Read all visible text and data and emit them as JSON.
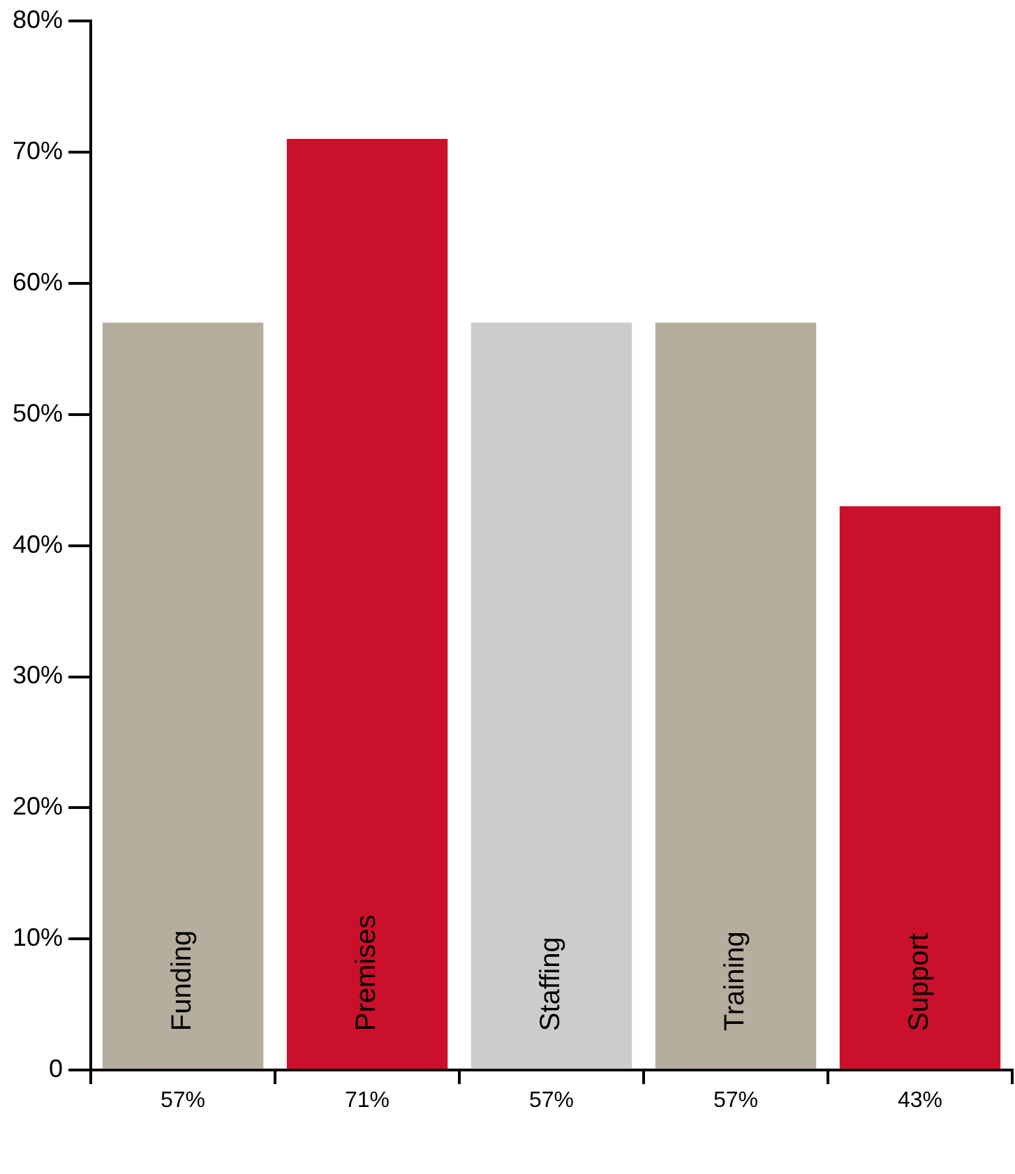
{
  "chart_data": {
    "type": "bar",
    "categories": [
      "Funding",
      "Premises",
      "Staffing",
      "Training",
      "Support"
    ],
    "values": [
      57,
      71,
      57,
      57,
      43
    ],
    "value_labels": [
      "57%",
      "71%",
      "57%",
      "57%",
      "43%"
    ],
    "colors": [
      "#b5ad9d",
      "#cb102b",
      "#cccccc",
      "#b5ad9d",
      "#cb102b"
    ],
    "ylim": [
      0,
      80
    ],
    "yticks": [
      {
        "value": 0,
        "label": "0"
      },
      {
        "value": 10,
        "label": "10%"
      },
      {
        "value": 20,
        "label": "20%"
      },
      {
        "value": 30,
        "label": "30%"
      },
      {
        "value": 40,
        "label": "40%"
      },
      {
        "value": 50,
        "label": "50%"
      },
      {
        "value": 60,
        "label": "60%"
      },
      {
        "value": 70,
        "label": "70%"
      },
      {
        "value": 80,
        "label": "80%"
      }
    ],
    "grid": false,
    "legend": false
  }
}
